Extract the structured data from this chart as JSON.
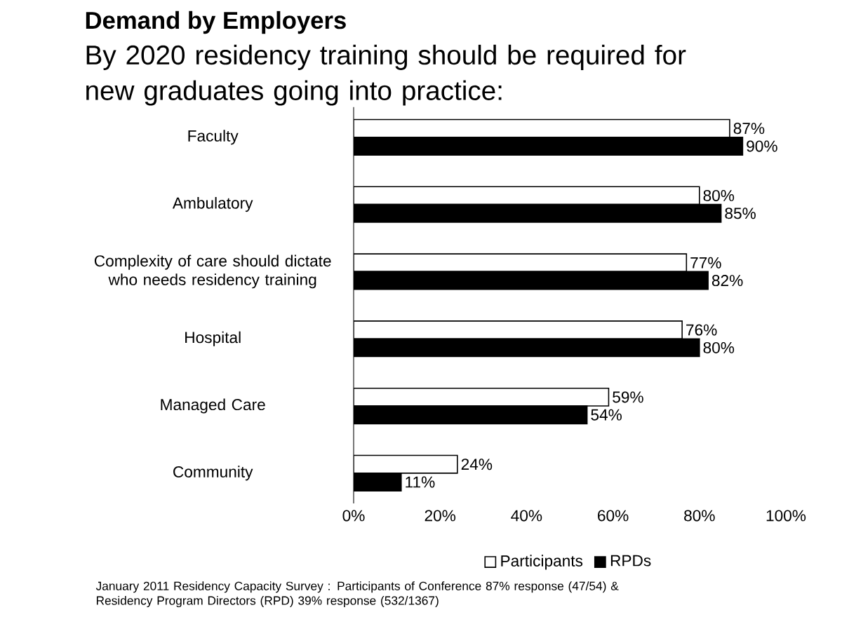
{
  "chart_data": {
    "type": "bar",
    "orientation": "horizontal",
    "title": "Demand by Employers",
    "subtitle": "By 2020 residency training should be required for new graduates going into practice:",
    "categories": [
      "Faculty",
      "Ambulatory",
      "Complexity of care should dictate who needs residency training",
      "Hospital",
      "Managed Care",
      "Community"
    ],
    "series": [
      {
        "name": "Participants",
        "color": "#ffffff",
        "values": [
          87,
          80,
          77,
          76,
          59,
          24
        ],
        "value_labels": [
          "87%",
          "80%",
          "77%",
          "76%",
          "59%",
          "24%"
        ]
      },
      {
        "name": "RPDs",
        "color": "#000000",
        "values": [
          90,
          85,
          82,
          80,
          54,
          11
        ],
        "value_labels": [
          "90%",
          "85%",
          "82%",
          "80%",
          "54%",
          "11%"
        ]
      }
    ],
    "xlim": [
      0,
      100
    ],
    "xticks": [
      {
        "value": 0,
        "label": "0%"
      },
      {
        "value": 20,
        "label": "20%"
      },
      {
        "value": 40,
        "label": "40%"
      },
      {
        "value": 60,
        "label": "60%"
      },
      {
        "value": 80,
        "label": "80%"
      },
      {
        "value": 100,
        "label": "100%"
      }
    ],
    "legend": "bottom",
    "grid": false,
    "annotations": [
      "January 2011 Residency Capacity Survey : Participants of Conference  87% response (47/54) & Residency Program Directors (RPD) 39% response (532/1367)"
    ]
  }
}
